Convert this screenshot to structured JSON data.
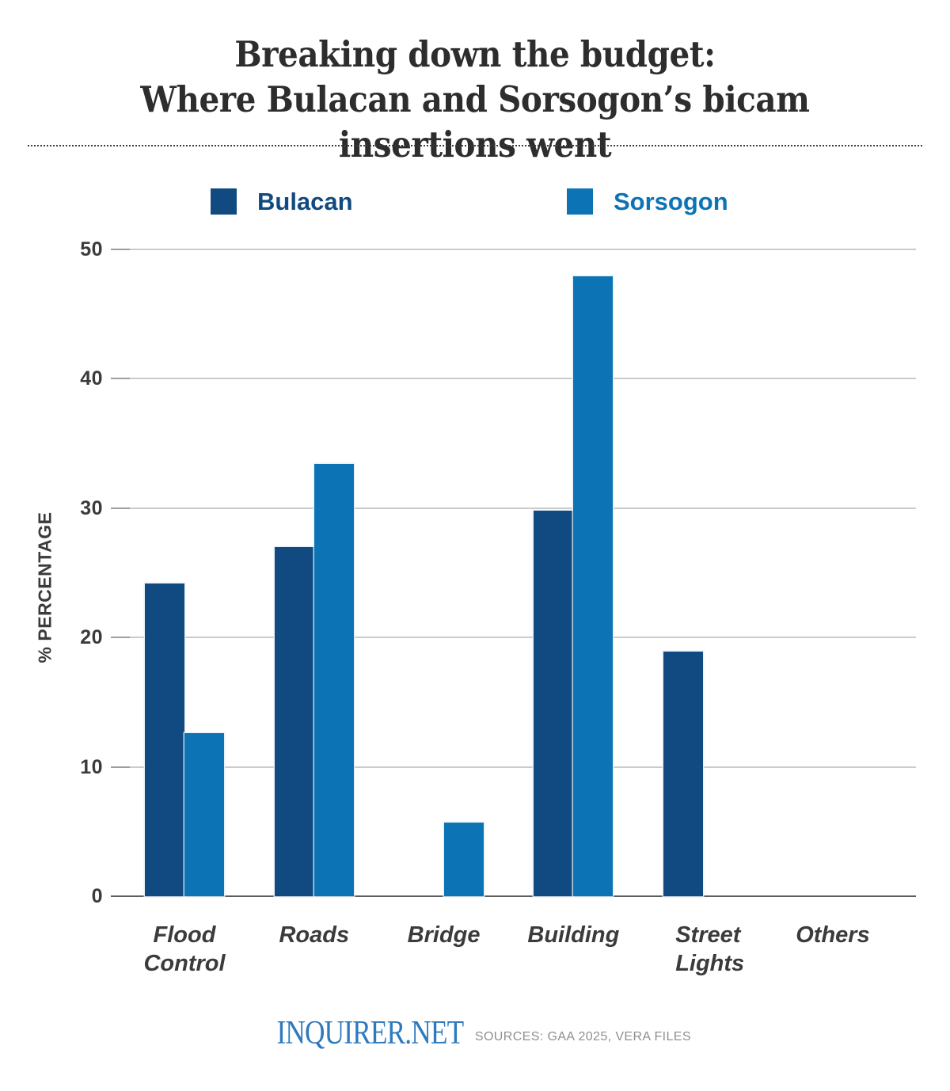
{
  "page": {
    "title_line1": "Breaking down the budget:",
    "title_line2": "Where Bulacan and Sorsogon’s bicam insertions went"
  },
  "legend": {
    "items": [
      {
        "label": "Bulacan",
        "color": "#114a80"
      },
      {
        "label": "Sorsogon",
        "color": "#0c73b5"
      }
    ]
  },
  "chart_data": {
    "type": "bar",
    "title": "Breaking down the budget: Where Bulacan and Sorsogon’s bicam insertions went",
    "xlabel": "",
    "ylabel": "% PERCENTAGE",
    "categories": [
      "Flood Control",
      "Roads",
      "Bridge",
      "Building",
      "Street Lights",
      "Others"
    ],
    "series": [
      {
        "name": "Bulacan",
        "color": "#114a80",
        "values": [
          24.2,
          27.0,
          0,
          29.8,
          18.9,
          0
        ]
      },
      {
        "name": "Sorsogon",
        "color": "#0c73b5",
        "values": [
          12.6,
          33.4,
          5.7,
          47.9,
          0,
          0
        ]
      }
    ],
    "ylim": [
      0,
      50
    ],
    "yticks": [
      0,
      10,
      20,
      30,
      40,
      50
    ],
    "grid": true,
    "legend_position": "top"
  },
  "footer": {
    "logo": "INQUIRER.NET",
    "sources": "SOURCES: GAA 2025, VERA FILES"
  }
}
